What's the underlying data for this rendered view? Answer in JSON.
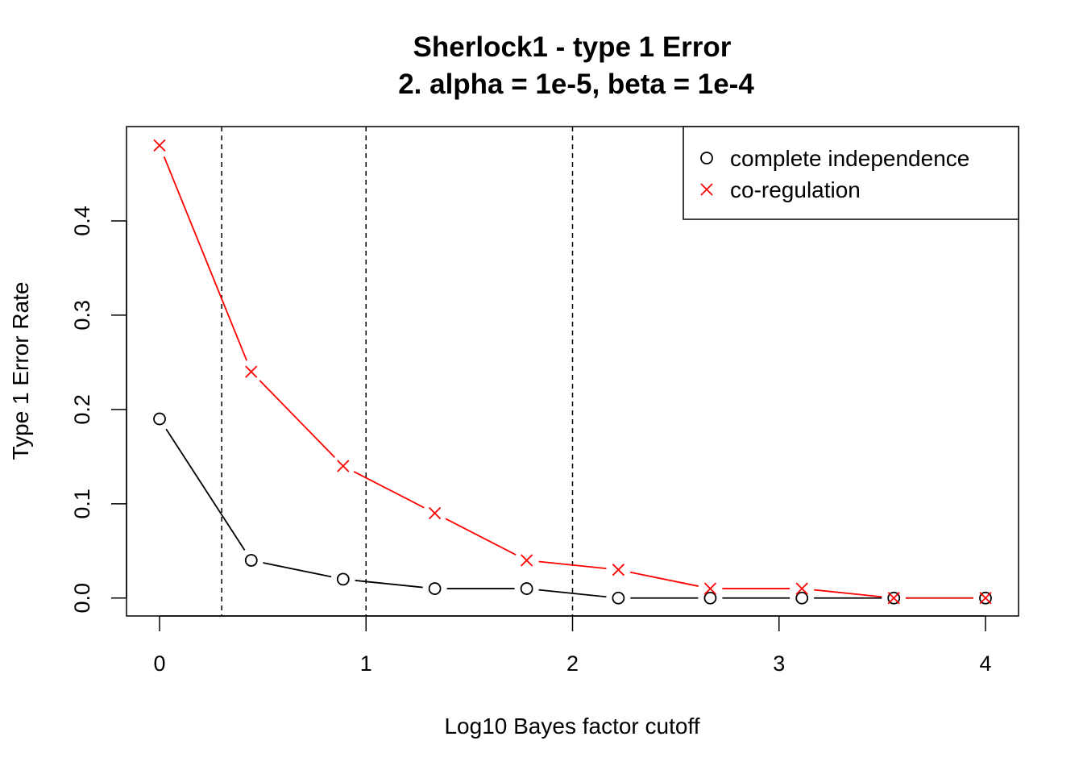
{
  "chart_data": {
    "type": "line",
    "title": "Sherlock1 - type 1 Error",
    "subtitle": "2. alpha = 1e-5, beta = 1e-4",
    "xlabel": "Log10 Bayes factor cutoff",
    "ylabel": "Type 1 Error Rate",
    "xlim": [
      -0.16,
      4.16
    ],
    "ylim": [
      -0.019,
      0.5
    ],
    "xticks": [
      0,
      1,
      2,
      3,
      4
    ],
    "xtick_labels": [
      "0",
      "1",
      "2",
      "3",
      "4"
    ],
    "yticks": [
      0.0,
      0.1,
      0.2,
      0.3,
      0.4
    ],
    "ytick_labels": [
      "0.0",
      "0.1",
      "0.2",
      "0.3",
      "0.4"
    ],
    "vlines": [
      0.301,
      1,
      2
    ],
    "grid": false,
    "legend_position": "top-right",
    "x": [
      0,
      0.444,
      0.889,
      1.333,
      1.778,
      2.222,
      2.667,
      3.111,
      3.556,
      4.0
    ],
    "series": [
      {
        "name": "complete independence",
        "marker": "circle",
        "color": "#000000",
        "values": [
          0.19,
          0.04,
          0.02,
          0.01,
          0.01,
          0.0,
          0.0,
          0.0,
          0.0,
          0.0
        ]
      },
      {
        "name": "co-regulation",
        "marker": "cross",
        "color": "#ff0000",
        "values": [
          0.48,
          0.24,
          0.14,
          0.09,
          0.04,
          0.03,
          0.01,
          0.01,
          0.0,
          0.0
        ]
      }
    ]
  }
}
